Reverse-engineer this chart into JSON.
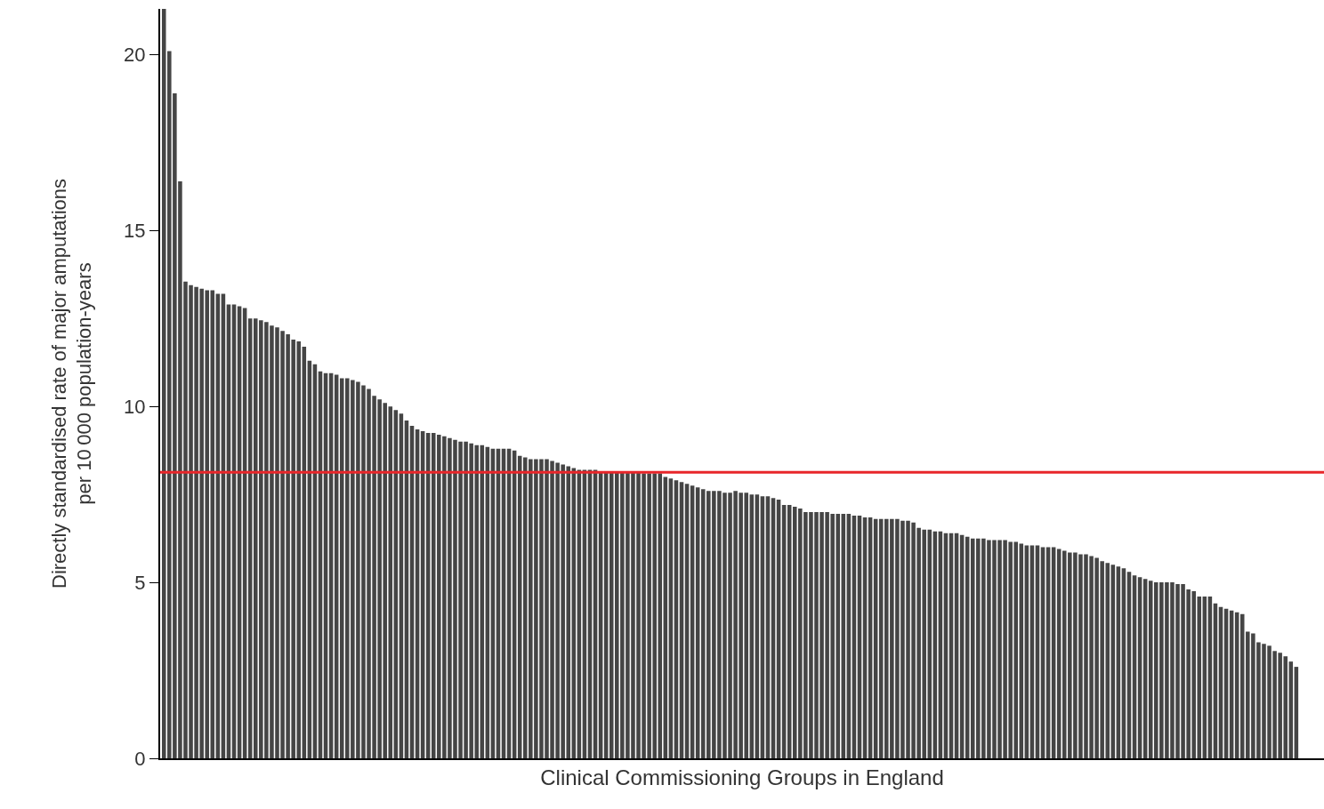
{
  "chart_data": {
    "type": "bar",
    "xlabel": "Clinical Commissioning Groups in England",
    "ylabel": "Directly standardised rate of major amputations\nper 10 000 population-years",
    "categories": [
      null,
      null,
      null,
      null,
      null,
      null,
      null,
      null,
      null,
      null,
      null,
      null,
      null,
      null,
      null,
      null,
      null,
      null,
      null,
      null,
      null,
      null,
      null,
      null,
      null,
      null,
      null,
      null,
      null,
      null,
      null,
      null,
      null,
      null,
      null,
      null,
      null,
      null,
      null,
      null,
      null,
      null,
      null,
      null,
      null,
      null,
      null,
      null,
      null,
      null,
      null,
      null,
      null,
      null,
      null,
      null,
      null,
      null,
      null,
      null,
      null,
      null,
      null,
      null,
      null,
      null,
      null,
      null,
      null,
      null,
      null,
      null,
      null,
      null,
      null,
      null,
      null,
      null,
      null,
      null,
      null,
      null,
      null,
      null,
      null,
      null,
      null,
      null,
      null,
      null,
      null,
      null,
      null,
      null,
      null,
      null,
      null,
      null,
      null,
      null,
      null,
      null,
      null,
      null,
      null,
      null,
      null,
      null,
      null,
      null,
      null,
      null,
      null,
      null,
      null,
      null,
      null,
      null,
      null,
      null,
      null,
      null,
      null,
      null,
      null,
      null,
      null,
      null,
      null,
      null,
      null,
      null,
      null,
      null,
      null,
      null,
      null,
      null,
      null,
      null,
      null,
      null,
      null,
      null,
      null,
      null,
      null,
      null,
      null,
      null,
      null,
      null,
      null,
      null,
      null,
      null,
      null,
      null,
      null,
      null,
      null,
      null,
      null,
      null,
      null,
      null,
      null,
      null,
      null,
      null,
      null,
      null,
      null,
      null,
      null,
      null,
      null,
      null,
      null,
      null,
      null,
      null,
      null,
      null,
      null,
      null,
      null,
      null,
      null,
      null,
      null,
      null,
      null,
      null,
      null,
      null,
      null,
      null,
      null,
      null,
      null,
      null,
      null,
      null,
      null,
      null,
      null,
      null,
      null,
      null,
      null
    ],
    "values": [
      21.3,
      20.1,
      18.9,
      16.4,
      13.55,
      13.45,
      13.4,
      13.35,
      13.3,
      13.3,
      13.2,
      13.2,
      12.9,
      12.9,
      12.85,
      12.8,
      12.5,
      12.5,
      12.45,
      12.4,
      12.3,
      12.25,
      12.15,
      12.05,
      11.9,
      11.85,
      11.7,
      11.3,
      11.2,
      11.0,
      10.95,
      10.95,
      10.9,
      10.8,
      10.8,
      10.75,
      10.7,
      10.6,
      10.5,
      10.3,
      10.2,
      10.1,
      10.0,
      9.9,
      9.8,
      9.6,
      9.45,
      9.35,
      9.3,
      9.25,
      9.25,
      9.2,
      9.15,
      9.1,
      9.05,
      9.0,
      9.0,
      8.95,
      8.9,
      8.9,
      8.85,
      8.8,
      8.8,
      8.8,
      8.8,
      8.75,
      8.6,
      8.55,
      8.5,
      8.5,
      8.5,
      8.5,
      8.45,
      8.4,
      8.35,
      8.3,
      8.25,
      8.2,
      8.2,
      8.2,
      8.2,
      8.15,
      8.15,
      8.15,
      8.15,
      8.15,
      8.15,
      8.15,
      8.15,
      8.1,
      8.1,
      8.1,
      8.1,
      8.0,
      7.95,
      7.9,
      7.85,
      7.8,
      7.75,
      7.7,
      7.65,
      7.6,
      7.6,
      7.6,
      7.55,
      7.55,
      7.6,
      7.55,
      7.55,
      7.5,
      7.5,
      7.45,
      7.45,
      7.4,
      7.35,
      7.2,
      7.2,
      7.15,
      7.1,
      7.0,
      7.0,
      7.0,
      7.0,
      7.0,
      6.95,
      6.95,
      6.95,
      6.95,
      6.9,
      6.9,
      6.85,
      6.85,
      6.8,
      6.8,
      6.8,
      6.8,
      6.8,
      6.75,
      6.75,
      6.7,
      6.55,
      6.5,
      6.5,
      6.45,
      6.45,
      6.4,
      6.4,
      6.4,
      6.35,
      6.3,
      6.25,
      6.25,
      6.25,
      6.2,
      6.2,
      6.2,
      6.2,
      6.15,
      6.15,
      6.1,
      6.05,
      6.05,
      6.05,
      6.0,
      6.0,
      6.0,
      5.95,
      5.9,
      5.85,
      5.85,
      5.8,
      5.8,
      5.75,
      5.7,
      5.6,
      5.55,
      5.5,
      5.45,
      5.4,
      5.3,
      5.2,
      5.15,
      5.1,
      5.05,
      5.0,
      5.0,
      5.0,
      5.0,
      4.95,
      4.95,
      4.8,
      4.75,
      4.6,
      4.6,
      4.6,
      4.4,
      4.3,
      4.25,
      4.2,
      4.15,
      4.1,
      3.6,
      3.55,
      3.3,
      3.25,
      3.2,
      3.05,
      3.0,
      2.9,
      2.75,
      2.6
    ],
    "color": "#454545",
    "ylim": [
      0,
      21.3
    ],
    "yticks": [
      0,
      5,
      10,
      15,
      20
    ],
    "ref_lines": [
      {
        "axis": "y",
        "value": 8.13,
        "color": "#e8262a"
      }
    ]
  }
}
